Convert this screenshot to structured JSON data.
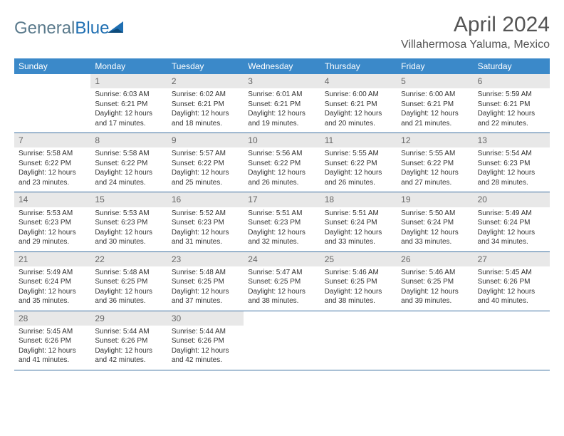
{
  "logo": {
    "word1": "General",
    "word2": "Blue"
  },
  "title": "April 2024",
  "location": "Villahermosa Yaluma, Mexico",
  "colors": {
    "header_bg": "#3b89c9",
    "header_text": "#ffffff",
    "daynum_bg": "#e8e8e8",
    "daynum_text": "#666666",
    "week_border": "#3b6fa0",
    "logo_gray": "#5a7a8c",
    "logo_blue": "#1f6fb2",
    "title_color": "#555555"
  },
  "day_names": [
    "Sunday",
    "Monday",
    "Tuesday",
    "Wednesday",
    "Thursday",
    "Friday",
    "Saturday"
  ],
  "grid": {
    "first_weekday": 1,
    "days_in_month": 30
  },
  "days": {
    "1": {
      "sunrise": "6:03 AM",
      "sunset": "6:21 PM",
      "daylight": "12 hours and 17 minutes."
    },
    "2": {
      "sunrise": "6:02 AM",
      "sunset": "6:21 PM",
      "daylight": "12 hours and 18 minutes."
    },
    "3": {
      "sunrise": "6:01 AM",
      "sunset": "6:21 PM",
      "daylight": "12 hours and 19 minutes."
    },
    "4": {
      "sunrise": "6:00 AM",
      "sunset": "6:21 PM",
      "daylight": "12 hours and 20 minutes."
    },
    "5": {
      "sunrise": "6:00 AM",
      "sunset": "6:21 PM",
      "daylight": "12 hours and 21 minutes."
    },
    "6": {
      "sunrise": "5:59 AM",
      "sunset": "6:21 PM",
      "daylight": "12 hours and 22 minutes."
    },
    "7": {
      "sunrise": "5:58 AM",
      "sunset": "6:22 PM",
      "daylight": "12 hours and 23 minutes."
    },
    "8": {
      "sunrise": "5:58 AM",
      "sunset": "6:22 PM",
      "daylight": "12 hours and 24 minutes."
    },
    "9": {
      "sunrise": "5:57 AM",
      "sunset": "6:22 PM",
      "daylight": "12 hours and 25 minutes."
    },
    "10": {
      "sunrise": "5:56 AM",
      "sunset": "6:22 PM",
      "daylight": "12 hours and 26 minutes."
    },
    "11": {
      "sunrise": "5:55 AM",
      "sunset": "6:22 PM",
      "daylight": "12 hours and 26 minutes."
    },
    "12": {
      "sunrise": "5:55 AM",
      "sunset": "6:22 PM",
      "daylight": "12 hours and 27 minutes."
    },
    "13": {
      "sunrise": "5:54 AM",
      "sunset": "6:23 PM",
      "daylight": "12 hours and 28 minutes."
    },
    "14": {
      "sunrise": "5:53 AM",
      "sunset": "6:23 PM",
      "daylight": "12 hours and 29 minutes."
    },
    "15": {
      "sunrise": "5:53 AM",
      "sunset": "6:23 PM",
      "daylight": "12 hours and 30 minutes."
    },
    "16": {
      "sunrise": "5:52 AM",
      "sunset": "6:23 PM",
      "daylight": "12 hours and 31 minutes."
    },
    "17": {
      "sunrise": "5:51 AM",
      "sunset": "6:23 PM",
      "daylight": "12 hours and 32 minutes."
    },
    "18": {
      "sunrise": "5:51 AM",
      "sunset": "6:24 PM",
      "daylight": "12 hours and 33 minutes."
    },
    "19": {
      "sunrise": "5:50 AM",
      "sunset": "6:24 PM",
      "daylight": "12 hours and 33 minutes."
    },
    "20": {
      "sunrise": "5:49 AM",
      "sunset": "6:24 PM",
      "daylight": "12 hours and 34 minutes."
    },
    "21": {
      "sunrise": "5:49 AM",
      "sunset": "6:24 PM",
      "daylight": "12 hours and 35 minutes."
    },
    "22": {
      "sunrise": "5:48 AM",
      "sunset": "6:25 PM",
      "daylight": "12 hours and 36 minutes."
    },
    "23": {
      "sunrise": "5:48 AM",
      "sunset": "6:25 PM",
      "daylight": "12 hours and 37 minutes."
    },
    "24": {
      "sunrise": "5:47 AM",
      "sunset": "6:25 PM",
      "daylight": "12 hours and 38 minutes."
    },
    "25": {
      "sunrise": "5:46 AM",
      "sunset": "6:25 PM",
      "daylight": "12 hours and 38 minutes."
    },
    "26": {
      "sunrise": "5:46 AM",
      "sunset": "6:25 PM",
      "daylight": "12 hours and 39 minutes."
    },
    "27": {
      "sunrise": "5:45 AM",
      "sunset": "6:26 PM",
      "daylight": "12 hours and 40 minutes."
    },
    "28": {
      "sunrise": "5:45 AM",
      "sunset": "6:26 PM",
      "daylight": "12 hours and 41 minutes."
    },
    "29": {
      "sunrise": "5:44 AM",
      "sunset": "6:26 PM",
      "daylight": "12 hours and 42 minutes."
    },
    "30": {
      "sunrise": "5:44 AM",
      "sunset": "6:26 PM",
      "daylight": "12 hours and 42 minutes."
    }
  },
  "labels": {
    "sunrise_prefix": "Sunrise: ",
    "sunset_prefix": "Sunset: ",
    "daylight_prefix": "Daylight: "
  }
}
